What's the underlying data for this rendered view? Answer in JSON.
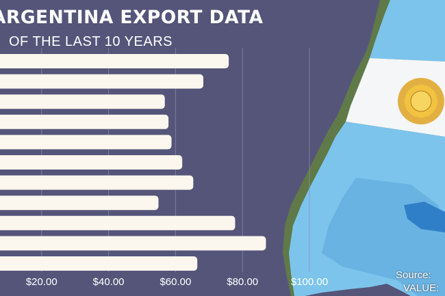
{
  "chart_data": {
    "type": "bar",
    "orientation": "horizontal",
    "title": "ARGENTINA EXPORT DATA",
    "subtitle": "OF THE LAST 10 YEARS",
    "xlim": [
      0,
      100
    ],
    "x_ticks": [
      "$20.00",
      "$40.00",
      "$60.00",
      "$80.00",
      "$100.00"
    ],
    "x_tick_values": [
      20,
      40,
      60,
      80,
      100
    ],
    "grid": "vertical",
    "values": [
      75.9,
      68.3,
      56.8,
      57.9,
      58.8,
      62.0,
      65.3,
      54.9,
      77.8,
      87.0,
      66.5
    ],
    "bar_color": "#fbf7ee"
  },
  "source": {
    "source_label": "Source:",
    "value_label": "VALUE:"
  },
  "colors": {
    "background": "#55557a",
    "land": "#5f7a48",
    "flag_blue": "#7cc4ec",
    "flag_white": "#f4f6f8",
    "sun": "#e0a82e"
  }
}
